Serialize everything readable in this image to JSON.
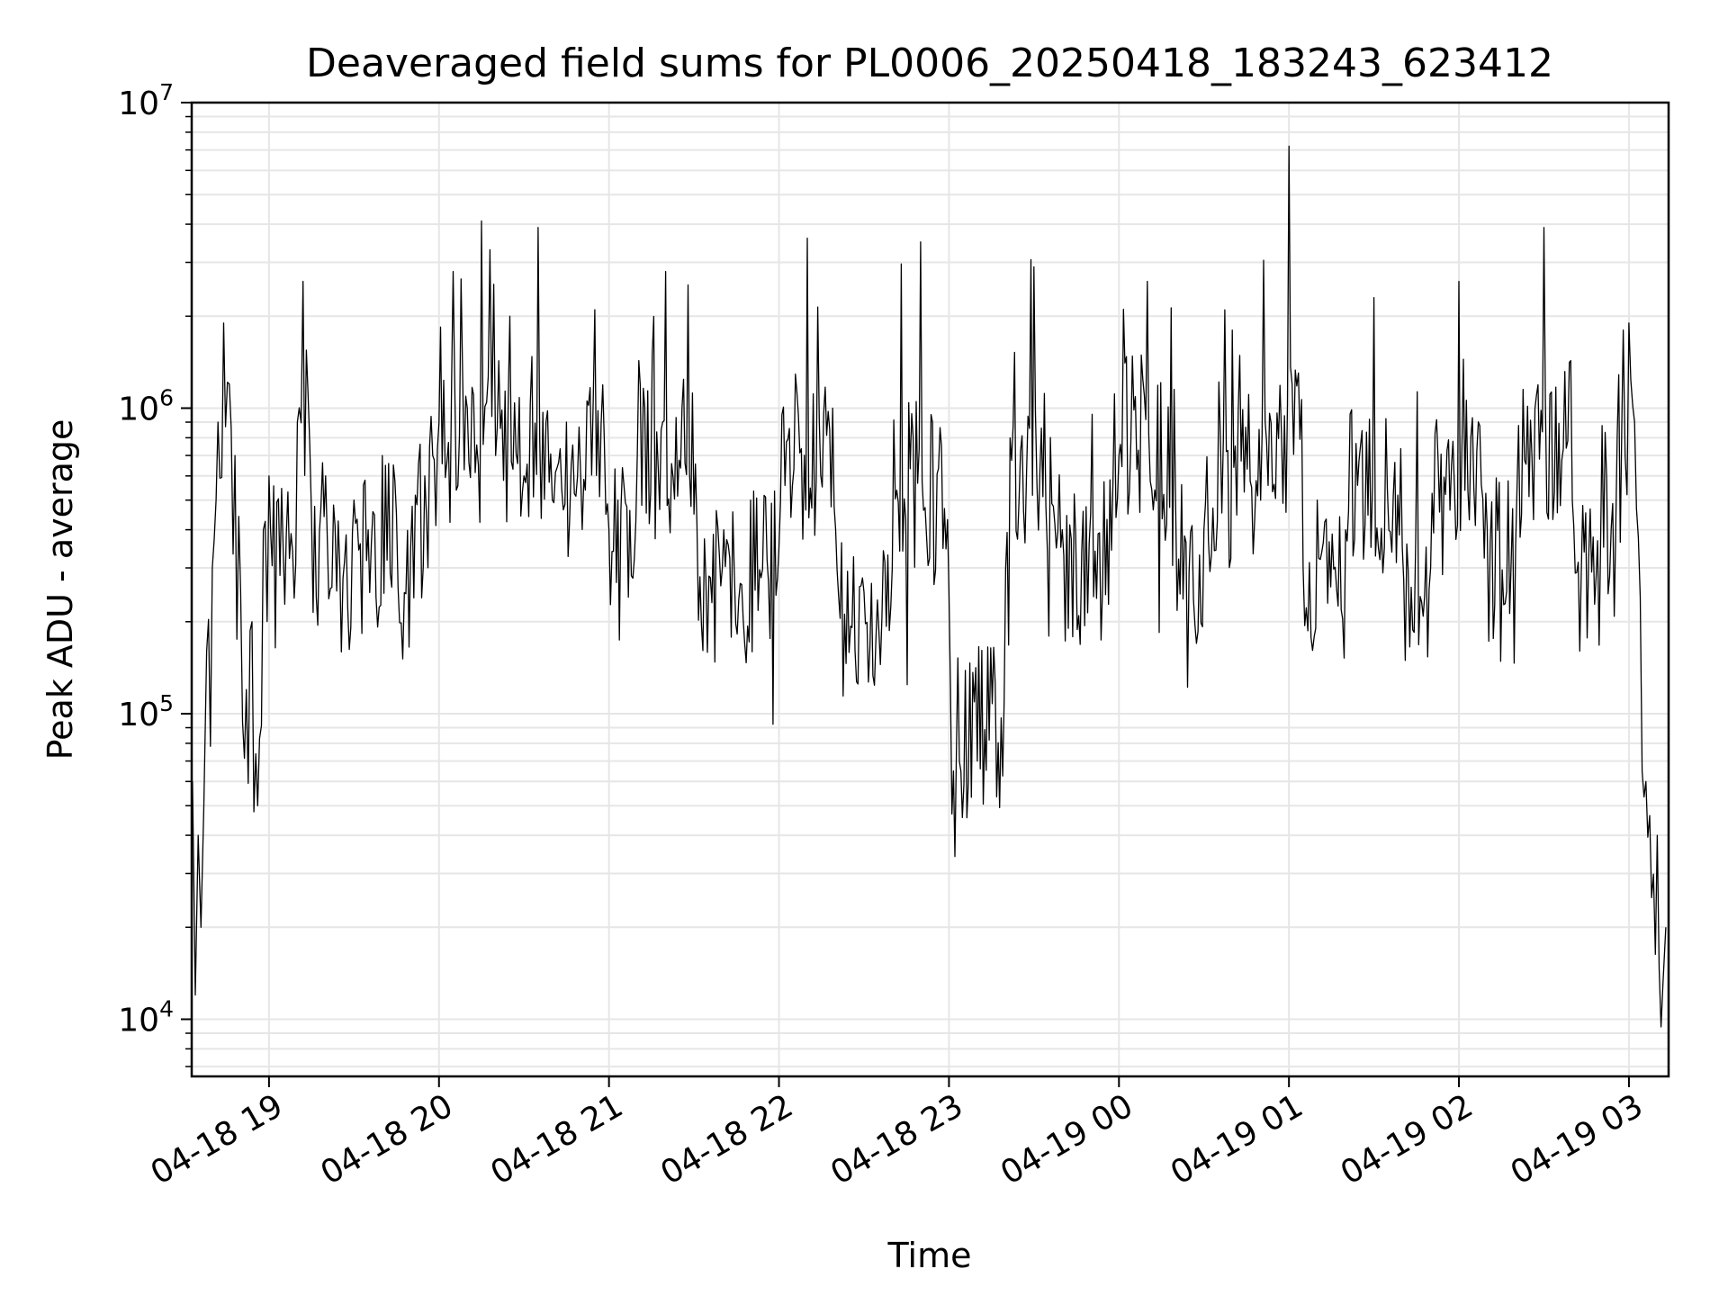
{
  "chart_data": {
    "type": "line",
    "title": "Deaveraged field sums for PL0006_20250418_183243_623412",
    "xlabel": "Time",
    "ylabel": "Peak ADU - average",
    "yscale": "log",
    "ylim": [
      6500,
      10000000
    ],
    "xlim": [
      "2025-04-18 18:32:43",
      "2025-04-19 03:14:00"
    ],
    "grid": true,
    "line_color": "#000000",
    "grid_color": "#e6e6e6",
    "x_ticks": [
      {
        "value": "2025-04-18 19:00",
        "label": "04-18 19"
      },
      {
        "value": "2025-04-18 20:00",
        "label": "04-18 20"
      },
      {
        "value": "2025-04-18 21:00",
        "label": "04-18 21"
      },
      {
        "value": "2025-04-18 22:00",
        "label": "04-18 22"
      },
      {
        "value": "2025-04-18 23:00",
        "label": "04-18 23"
      },
      {
        "value": "2025-04-19 00:00",
        "label": "04-19 00"
      },
      {
        "value": "2025-04-19 01:00",
        "label": "04-19 01"
      },
      {
        "value": "2025-04-19 02:00",
        "label": "04-19 02"
      },
      {
        "value": "2025-04-19 03:00",
        "label": "04-19 03"
      }
    ],
    "y_ticks": [
      {
        "value": 10000,
        "base": "10",
        "exp": "4"
      },
      {
        "value": 100000,
        "base": "10",
        "exp": "5"
      },
      {
        "value": 1000000,
        "base": "10",
        "exp": "6"
      },
      {
        "value": 10000000,
        "base": "10",
        "exp": "7"
      }
    ],
    "series": [
      {
        "x": [
          "2025-04-18 18:33",
          "2025-04-18 18:34",
          "2025-04-18 18:35",
          "2025-04-18 18:36",
          "2025-04-18 18:37",
          "2025-04-18 18:38",
          "2025-04-18 18:40",
          "2025-04-18 18:42",
          "2025-04-18 18:44",
          "2025-04-18 18:46",
          "2025-04-18 18:48",
          "2025-04-18 18:50",
          "2025-04-18 18:52",
          "2025-04-18 18:54",
          "2025-04-18 18:56",
          "2025-04-18 18:58",
          "2025-04-18 19:00",
          "2025-04-18 19:05",
          "2025-04-18 19:10",
          "2025-04-18 19:12",
          "2025-04-18 19:15",
          "2025-04-18 19:20",
          "2025-04-18 19:25",
          "2025-04-18 19:30",
          "2025-04-18 19:35",
          "2025-04-18 19:40",
          "2025-04-18 19:45",
          "2025-04-18 19:50",
          "2025-04-18 19:55",
          "2025-04-18 20:00",
          "2025-04-18 20:05",
          "2025-04-18 20:10",
          "2025-04-18 20:15",
          "2025-04-18 20:18",
          "2025-04-18 20:20",
          "2025-04-18 20:25",
          "2025-04-18 20:30",
          "2025-04-18 20:35",
          "2025-04-18 20:40",
          "2025-04-18 20:45",
          "2025-04-18 20:50",
          "2025-04-18 20:55",
          "2025-04-18 21:00",
          "2025-04-18 21:10",
          "2025-04-18 21:20",
          "2025-04-18 21:30",
          "2025-04-18 21:40",
          "2025-04-18 21:50",
          "2025-04-18 22:00",
          "2025-04-18 22:10",
          "2025-04-18 22:20",
          "2025-04-18 22:30",
          "2025-04-18 22:40",
          "2025-04-18 22:50",
          "2025-04-18 23:00",
          "2025-04-18 23:10",
          "2025-04-18 23:20",
          "2025-04-18 23:30",
          "2025-04-18 23:40",
          "2025-04-18 23:50",
          "2025-04-19 00:00",
          "2025-04-19 00:10",
          "2025-04-19 00:20",
          "2025-04-19 00:30",
          "2025-04-19 00:40",
          "2025-04-19 00:50",
          "2025-04-19 01:00",
          "2025-04-19 01:05",
          "2025-04-19 01:10",
          "2025-04-19 01:20",
          "2025-04-19 01:30",
          "2025-04-19 01:40",
          "2025-04-19 01:50",
          "2025-04-19 02:00",
          "2025-04-19 02:10",
          "2025-04-19 02:20",
          "2025-04-19 02:30",
          "2025-04-19 02:40",
          "2025-04-19 02:50",
          "2025-04-19 02:58",
          "2025-04-19 03:00",
          "2025-04-19 03:02",
          "2025-04-19 03:04",
          "2025-04-19 03:06",
          "2025-04-19 03:08",
          "2025-04-19 03:10",
          "2025-04-19 03:12",
          "2025-04-19 03:13"
        ],
        "y": [
          60000,
          12000,
          40000,
          20000,
          50000,
          160000,
          300000,
          900000,
          1900000,
          1200000,
          700000,
          250000,
          120000,
          200000,
          50000,
          400000,
          600000,
          350000,
          900000,
          2600000,
          450000,
          600000,
          300000,
          500000,
          400000,
          700000,
          450000,
          350000,
          600000,
          900000,
          2800000,
          1000000,
          4100000,
          3300000,
          700000,
          2000000,
          600000,
          3900000,
          500000,
          900000,
          600000,
          2100000,
          400000,
          700000,
          2800000,
          450000,
          300000,
          500000,
          350000,
          3600000,
          400000,
          250000,
          300000,
          3500000,
          250000,
          70000,
          300000,
          2900000,
          400000,
          450000,
          700000,
          2600000,
          500000,
          400000,
          1800000,
          500000,
          7200000,
          300000,
          500000,
          400000,
          2300000,
          350000,
          300000,
          2600000,
          400000,
          350000,
          3900000,
          500000,
          350000,
          1800000,
          1900000,
          900000,
          240000,
          60000,
          25000,
          40000,
          13000,
          20000
        ]
      }
    ]
  }
}
